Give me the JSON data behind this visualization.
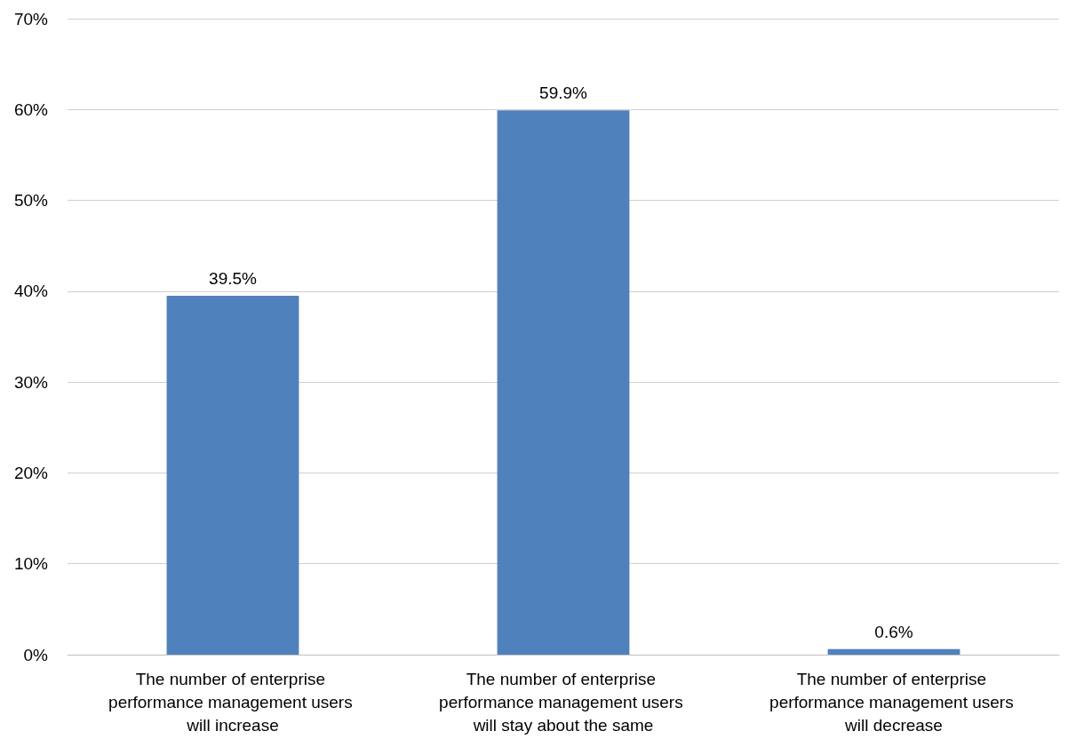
{
  "chart_data": {
    "type": "bar",
    "categories": [
      "The number of enterprise performance management users will increase",
      "The number of enterprise performance management users will stay about the same",
      "The number of enterprise performance management users will decrease"
    ],
    "values": [
      39.5,
      59.9,
      0.6
    ],
    "value_labels": [
      "39.5%",
      "59.9%",
      "0.6%"
    ],
    "color": "#4f81bd",
    "ylim": [
      0,
      70
    ],
    "yticks": [
      {
        "value": 0,
        "label": "0%"
      },
      {
        "value": 10,
        "label": "10%"
      },
      {
        "value": 20,
        "label": "20%"
      },
      {
        "value": 30,
        "label": "30%"
      },
      {
        "value": 40,
        "label": "40%"
      },
      {
        "value": 50,
        "label": "50%"
      },
      {
        "value": 60,
        "label": "60%"
      },
      {
        "value": 70,
        "label": "70%"
      }
    ],
    "grid": "y"
  }
}
